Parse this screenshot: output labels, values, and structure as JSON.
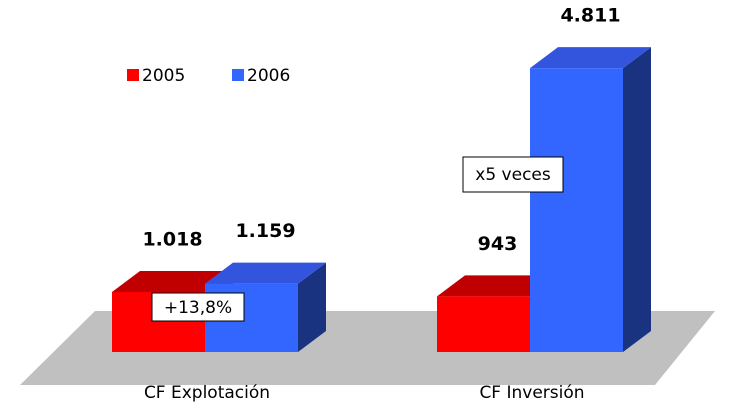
{
  "chart_data": {
    "type": "bar3d",
    "categories": [
      "CF Explotación",
      "CF Inversión"
    ],
    "series": [
      {
        "name": "2005",
        "color": "#ff0000",
        "values": [
          1018,
          943
        ],
        "value_labels": [
          "1.018",
          "943"
        ]
      },
      {
        "name": "2006",
        "color": "#3366ff",
        "values": [
          1159,
          4811
        ],
        "value_labels": [
          "1.159",
          "4.811"
        ]
      }
    ],
    "annotations": [
      "+13,8%",
      "x5 veces"
    ]
  }
}
